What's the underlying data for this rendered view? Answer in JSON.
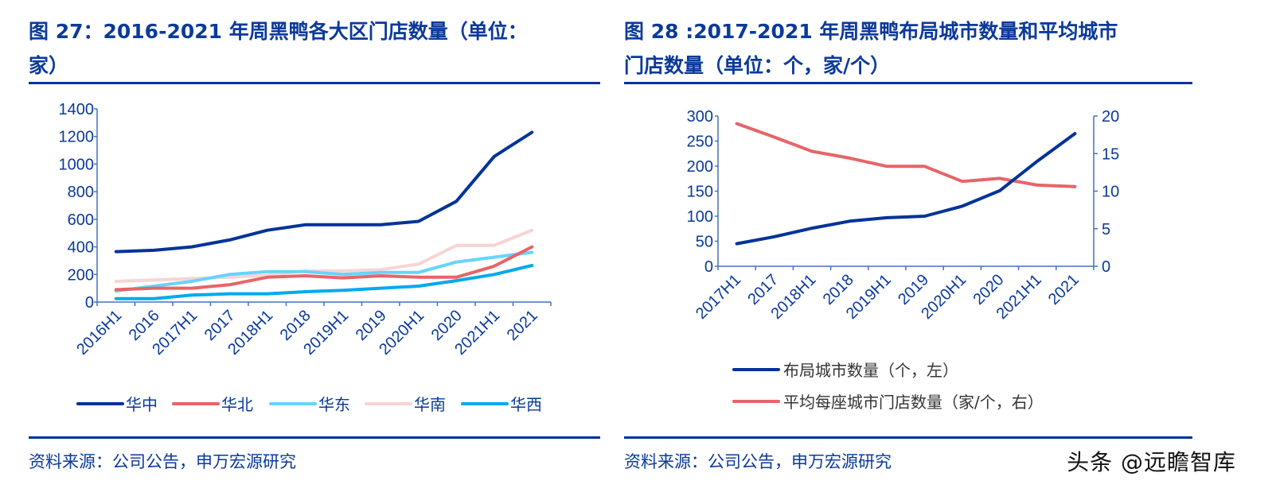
{
  "figures": {
    "left": {
      "title_line1": "图 27：2016-2021 年周黑鸭各大区门店数量（单位：",
      "title_line2": "家）",
      "source": "资料来源：公司公告，申万宏源研究"
    },
    "right": {
      "title_line1": "图 28 :2017-2021 年周黑鸭布局城市数量和平均城市",
      "title_line2": "门店数量（单位：个，家/个）",
      "source": "资料来源：公司公告，申万宏源研究"
    }
  },
  "watermark": "头条 @远瞻智库",
  "chart_data": [
    {
      "type": "line",
      "title": "图 27：2016-2021 年周黑鸭各大区门店数量（单位：家）",
      "xlabel": "",
      "ylabel": "",
      "ylim": [
        0,
        1400
      ],
      "yticks": [
        0,
        200,
        400,
        600,
        800,
        1000,
        1200,
        1400
      ],
      "grid": false,
      "legend_position": "bottom",
      "categories": [
        "2016H1",
        "2016",
        "2017H1",
        "2017",
        "2018H1",
        "2018",
        "2019H1",
        "2019",
        "2020H1",
        "2020",
        "2021H1",
        "2021"
      ],
      "series": [
        {
          "name": "华中",
          "color": "#003399",
          "values": [
            365,
            375,
            400,
            450,
            520,
            560,
            560,
            560,
            585,
            730,
            1055,
            1230
          ]
        },
        {
          "name": "华北",
          "color": "#e86468",
          "values": [
            90,
            100,
            100,
            125,
            180,
            190,
            175,
            190,
            180,
            180,
            260,
            400
          ]
        },
        {
          "name": "华东",
          "color": "#66d4ff",
          "values": [
            80,
            115,
            150,
            200,
            220,
            220,
            200,
            215,
            215,
            290,
            325,
            360
          ]
        },
        {
          "name": "华南",
          "color": "#f8d4d4",
          "values": [
            150,
            160,
            170,
            180,
            195,
            225,
            225,
            235,
            275,
            410,
            410,
            520
          ]
        },
        {
          "name": "华西",
          "color": "#00aaee",
          "values": [
            25,
            25,
            50,
            60,
            60,
            75,
            85,
            100,
            115,
            155,
            200,
            265
          ]
        }
      ]
    },
    {
      "type": "line",
      "title": "图 28 :2017-2021 年周黑鸭布局城市数量和平均城市门店数量（单位：个，家/个）",
      "xlabel": "",
      "ylabel": "",
      "ylim": [
        0,
        300
      ],
      "y2lim": [
        0,
        20
      ],
      "yticks": [
        0,
        50,
        100,
        150,
        200,
        250,
        300
      ],
      "y2ticks": [
        0,
        5,
        10,
        15,
        20
      ],
      "grid": false,
      "legend_position": "bottom",
      "categories": [
        "2017H1",
        "2017",
        "2018H1",
        "2018",
        "2019H1",
        "2019",
        "2020H1",
        "2020",
        "2021H1",
        "2021"
      ],
      "series": [
        {
          "name": "布局城市数量（个，左）",
          "axis": "left",
          "color": "#003399",
          "values": [
            45,
            59,
            76,
            90,
            97,
            100,
            120,
            151,
            210,
            265
          ]
        },
        {
          "name": "平均每座城市门店数量（家/个，右）",
          "axis": "right",
          "color": "#e86468",
          "values": [
            19.0,
            17.2,
            15.3,
            14.4,
            13.3,
            13.3,
            11.3,
            11.7,
            10.8,
            10.6
          ]
        }
      ]
    }
  ]
}
